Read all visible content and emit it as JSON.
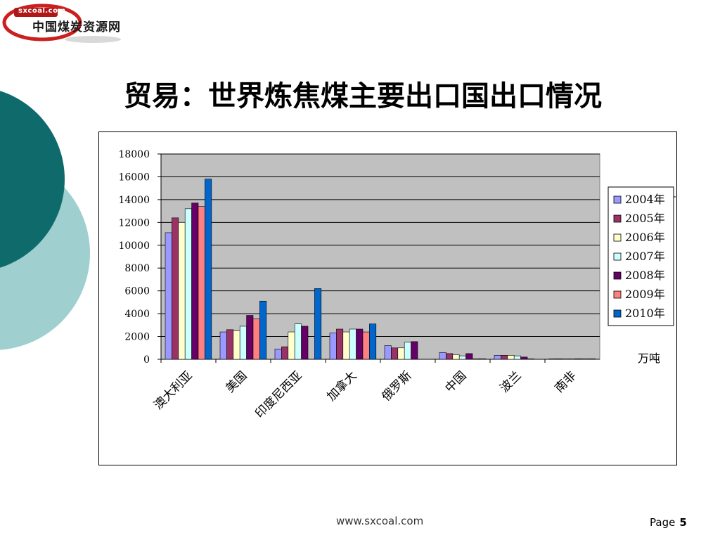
{
  "logo": {
    "url_text": "sxcoal.com",
    "name": "中国煤炭资源网"
  },
  "title": "贸易：世界炼焦煤主要出口国出口情况",
  "footer": {
    "url": "www.sxcoal.com",
    "page_label": "Page",
    "page_number": "5"
  },
  "colors": {
    "deco_dark": "#0f6b6b",
    "deco_light": "#9fcfcf",
    "plot_bg": "#c0c0c0"
  },
  "chart_data": {
    "type": "bar",
    "categories": [
      "澳大利亚",
      "美国",
      "印度尼西亚",
      "加拿大",
      "俄罗斯",
      "中国",
      "波兰",
      "南非"
    ],
    "series": [
      {
        "name": "2004年",
        "color": "#9999ff",
        "values": [
          11100,
          2400,
          900,
          2300,
          1200,
          600,
          350,
          50
        ]
      },
      {
        "name": "2005年",
        "color": "#993366",
        "values": [
          12400,
          2600,
          1100,
          2650,
          1000,
          500,
          350,
          50
        ]
      },
      {
        "name": "2006年",
        "color": "#ffffcc",
        "values": [
          12000,
          2500,
          2400,
          2400,
          1000,
          400,
          350,
          50
        ]
      },
      {
        "name": "2007年",
        "color": "#ccffff",
        "values": [
          13200,
          2900,
          3100,
          2650,
          1500,
          300,
          300,
          50
        ]
      },
      {
        "name": "2008年",
        "color": "#660066",
        "values": [
          13700,
          3850,
          2900,
          2650,
          1550,
          500,
          200,
          50
        ]
      },
      {
        "name": "2009年",
        "color": "#ff8080",
        "values": [
          13400,
          3550,
          0,
          2400,
          0,
          50,
          50,
          50
        ]
      },
      {
        "name": "2010年",
        "color": "#0066cc",
        "values": [
          15800,
          5100,
          6200,
          3100,
          0,
          50,
          0,
          50
        ]
      }
    ],
    "ylim": [
      0,
      18000
    ],
    "yticks": [
      0,
      2000,
      4000,
      6000,
      8000,
      10000,
      12000,
      14000,
      16000,
      18000
    ],
    "unit_label": "万吨",
    "grid": true,
    "legend_position": "right"
  }
}
